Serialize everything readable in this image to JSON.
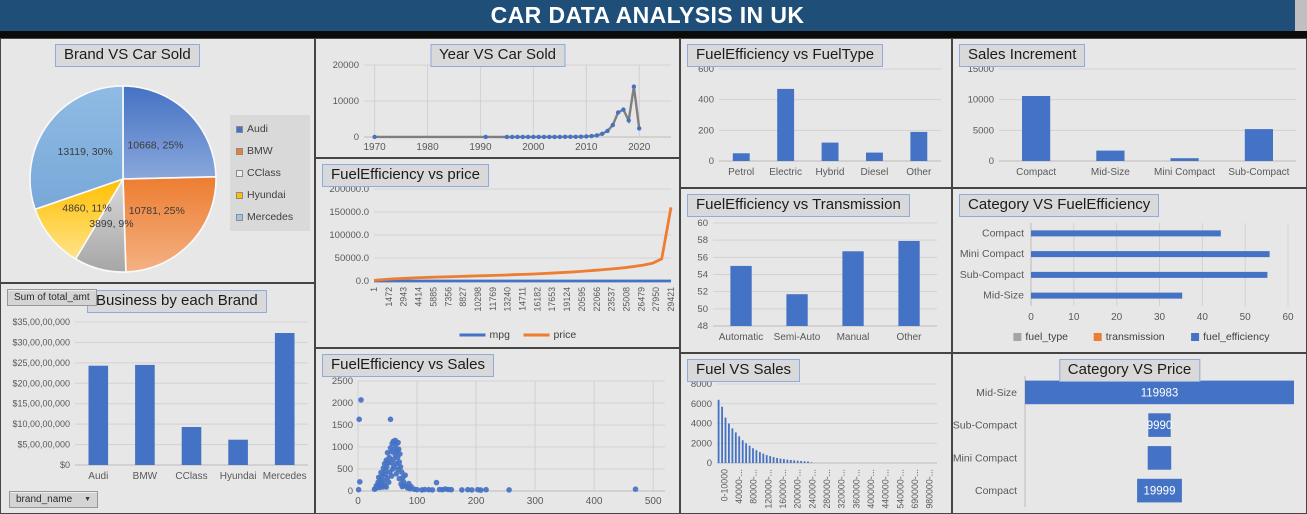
{
  "header": {
    "title": "CAR DATA ANALYSIS IN UK",
    "bg_color": "#1F4E79",
    "text_color": "#FFFFFF"
  },
  "pivot": {
    "field_button": "Sum of total_amt",
    "axis_button": "brand_name",
    "axis_arrow": "▼"
  },
  "colors": {
    "primary_bar": "#4472C4",
    "orange": "#ED7D31",
    "gray": "#A5A5A5",
    "yellow": "#FFC000",
    "light_blue": "#9DC3E6",
    "panel_bg": "#E8E7E7",
    "title_box_bg": "#D9D9D9",
    "title_box_border": "#8FAADC"
  },
  "chart_data": [
    {
      "id": "brand-pie",
      "type": "pie",
      "title": "Brand VS Car Sold",
      "categories": [
        "Audi",
        "BMW",
        "CClass",
        "Hyundai",
        "Mercedes"
      ],
      "values": [
        10668,
        10781,
        3899,
        4860,
        13119
      ],
      "labels": [
        "10668, 25%",
        "10781, 25%",
        "3899, 9%",
        "4860, 11%",
        "13119, 30%"
      ],
      "legend_colors": [
        "#4472C4",
        "#ED7D31",
        "#EDEDED",
        "#FFC000",
        "#9DC3E6"
      ],
      "slice_gradients": [
        [
          "#4472C4",
          "#8AA7DB"
        ],
        [
          "#ED7D31",
          "#F4B183"
        ],
        [
          "#D9D9D9",
          "#A6A6A6"
        ],
        [
          "#FFC000",
          "#FFE38A"
        ],
        [
          "#8FBBE4",
          "#79A8D8"
        ]
      ],
      "legend_position": "right"
    },
    {
      "id": "business-brand",
      "type": "bar",
      "title": "Business by each Brand",
      "categories": [
        "Audi",
        "BMW",
        "CClass",
        "Hyundai",
        "Mercedes"
      ],
      "values": [
        243000000,
        245000000,
        93000000,
        62000000,
        323000000
      ],
      "ylim": [
        0,
        350000000
      ],
      "ytick_labels": [
        "$0",
        "$5,00,00,000",
        "$10,00,00,000",
        "$15,00,00,000",
        "$20,00,00,000",
        "$25,00,00,000",
        "$30,00,00,000",
        "$35,00,00,000"
      ],
      "tick_fs": 9,
      "bar_frac": 0.42
    },
    {
      "id": "year-sold",
      "type": "line",
      "title": "Year VS Car Sold",
      "x": [
        1970,
        1991,
        1995,
        1996,
        1997,
        1998,
        1999,
        2000,
        2001,
        2002,
        2003,
        2004,
        2005,
        2006,
        2007,
        2008,
        2009,
        2010,
        2011,
        2012,
        2013,
        2014,
        2015,
        2016,
        2017,
        2018,
        2019,
        2020
      ],
      "y": [
        20,
        30,
        10,
        12,
        15,
        18,
        20,
        22,
        25,
        28,
        30,
        35,
        40,
        45,
        55,
        65,
        80,
        150,
        250,
        450,
        900,
        1700,
        3300,
        6800,
        7600,
        4600,
        14000,
        2400
      ],
      "xlim": [
        1968,
        2026
      ],
      "ylim": [
        0,
        20000
      ],
      "xticks": [
        1970,
        1980,
        1990,
        2000,
        2010,
        2020
      ],
      "yticks": [
        0,
        10000,
        20000
      ],
      "line_color": "#7F7F7F",
      "marker_color": "#4472C4"
    },
    {
      "id": "fe-price",
      "type": "multiline",
      "title": "FuelEfficiency vs price",
      "xtick_labels": [
        "1",
        "1472",
        "2943",
        "4414",
        "5885",
        "7356",
        "8827",
        "10298",
        "11769",
        "13240",
        "14711",
        "16182",
        "17653",
        "19124",
        "20595",
        "22066",
        "23537",
        "25008",
        "26479",
        "27950",
        "29421"
      ],
      "ylim": [
        0,
        200000
      ],
      "ytick_labels": [
        "0.0",
        "50000.0",
        "100000.0",
        "150000.0",
        "200000.0"
      ],
      "series": [
        {
          "name": "mpg",
          "color": "#4472C4",
          "values": [
            40,
            45,
            48,
            50,
            52,
            53,
            54,
            55,
            55,
            56,
            56,
            57,
            57,
            58,
            58,
            59,
            59,
            60,
            60,
            60,
            61,
            61,
            62,
            62,
            63,
            63,
            64,
            64,
            65,
            65,
            66,
            68,
            72
          ]
        },
        {
          "name": "price",
          "color": "#ED7D31",
          "values": [
            1200,
            3000,
            4500,
            5500,
            6500,
            7300,
            8000,
            8600,
            9200,
            9800,
            10400,
            11000,
            11600,
            12200,
            12900,
            13600,
            14300,
            15100,
            16000,
            17000,
            18000,
            19200,
            20500,
            22000,
            23500,
            25200,
            27000,
            29000,
            31500,
            34500,
            38500,
            48000,
            160000
          ]
        }
      ]
    },
    {
      "id": "fe-sales",
      "type": "scatter",
      "title": "FuelEfficiency vs Sales",
      "xlim": [
        0,
        520
      ],
      "ylim": [
        0,
        2500
      ],
      "xticks": [
        0,
        100,
        200,
        300,
        400,
        500
      ],
      "yticks": [
        0,
        500,
        1000,
        1500,
        2000,
        2500
      ],
      "point_color": "#4472C4",
      "points": [
        [
          5,
          2070
        ],
        [
          2,
          1630
        ],
        [
          55,
          1630
        ],
        [
          3,
          210
        ],
        [
          1,
          30
        ],
        [
          28,
          40
        ],
        [
          30,
          60
        ],
        [
          31,
          120
        ],
        [
          33,
          90
        ],
        [
          34,
          200
        ],
        [
          35,
          310
        ],
        [
          36,
          150
        ],
        [
          37,
          80
        ],
        [
          38,
          260
        ],
        [
          39,
          420
        ],
        [
          40,
          180
        ],
        [
          41,
          350
        ],
        [
          42,
          90
        ],
        [
          43,
          520
        ],
        [
          44,
          240
        ],
        [
          45,
          620
        ],
        [
          45,
          130
        ],
        [
          46,
          380
        ],
        [
          47,
          460
        ],
        [
          48,
          700
        ],
        [
          48,
          90
        ],
        [
          49,
          550
        ],
        [
          50,
          870
        ],
        [
          50,
          300
        ],
        [
          51,
          650
        ],
        [
          52,
          200
        ],
        [
          53,
          760
        ],
        [
          54,
          430
        ],
        [
          55,
          980
        ],
        [
          56,
          640
        ],
        [
          57,
          890
        ],
        [
          57,
          340
        ],
        [
          58,
          1080
        ],
        [
          59,
          500
        ],
        [
          60,
          1130
        ],
        [
          60,
          720
        ],
        [
          61,
          560
        ],
        [
          62,
          960
        ],
        [
          63,
          1150
        ],
        [
          63,
          830
        ],
        [
          64,
          1050
        ],
        [
          65,
          620
        ],
        [
          65,
          390
        ],
        [
          66,
          910
        ],
        [
          67,
          760
        ],
        [
          68,
          490
        ],
        [
          68,
          1100
        ],
        [
          69,
          950
        ],
        [
          70,
          660
        ],
        [
          70,
          280
        ],
        [
          71,
          840
        ],
        [
          72,
          550
        ],
        [
          73,
          160
        ],
        [
          74,
          430
        ],
        [
          75,
          100
        ],
        [
          76,
          310
        ],
        [
          77,
          210
        ],
        [
          78,
          120
        ],
        [
          80,
          360
        ],
        [
          82,
          110
        ],
        [
          84,
          70
        ],
        [
          86,
          170
        ],
        [
          88,
          50
        ],
        [
          90,
          100
        ],
        [
          95,
          40
        ],
        [
          100,
          30
        ],
        [
          108,
          25
        ],
        [
          113,
          35
        ],
        [
          120,
          30
        ],
        [
          126,
          25
        ],
        [
          133,
          190
        ],
        [
          138,
          35
        ],
        [
          143,
          30
        ],
        [
          148,
          45
        ],
        [
          153,
          35
        ],
        [
          158,
          30
        ],
        [
          176,
          25
        ],
        [
          186,
          30
        ],
        [
          193,
          25
        ],
        [
          203,
          30
        ],
        [
          208,
          20
        ],
        [
          217,
          30
        ],
        [
          256,
          25
        ],
        [
          470,
          40
        ]
      ]
    },
    {
      "id": "fe-fueltype",
      "type": "bar",
      "title": "FuelEfficiency vs FuelType",
      "categories": [
        "Petrol",
        "Electric",
        "Hybrid",
        "Diesel",
        "Other"
      ],
      "values": [
        50,
        470,
        120,
        55,
        190
      ],
      "ylim": [
        0,
        600
      ],
      "ytick_labels": [
        "0",
        "200",
        "400",
        "600"
      ]
    },
    {
      "id": "fe-transmission",
      "type": "bar",
      "title": "FuelEfficiency vs Transmission",
      "categories": [
        "Automatic",
        "Semi-Auto",
        "Manual",
        "Other"
      ],
      "values": [
        55.0,
        51.7,
        56.7,
        57.9
      ],
      "ylim": [
        48,
        60
      ],
      "ytick_labels": [
        "48",
        "50",
        "52",
        "54",
        "56",
        "58",
        "60"
      ]
    },
    {
      "id": "fuel-sales",
      "type": "thinbar",
      "title": "Fuel VS Sales",
      "values": [
        6400,
        5700,
        4600,
        4000,
        3500,
        3100,
        2700,
        2300,
        2000,
        1750,
        1500,
        1300,
        1100,
        950,
        800,
        700,
        600,
        520,
        450,
        390,
        340,
        300,
        260,
        230,
        200,
        175,
        150,
        60,
        40,
        30,
        20,
        15,
        10,
        8,
        6,
        5,
        4,
        3,
        3,
        2,
        2,
        2,
        1,
        1,
        1,
        1,
        0,
        0,
        0,
        0,
        0,
        0,
        0,
        0,
        0,
        0,
        0,
        0,
        0,
        0,
        0,
        0,
        0,
        0
      ],
      "xtick_labels": [
        "0-10000",
        "40000-...",
        "80000-...",
        "120000-...",
        "160000-...",
        "200000-...",
        "240000-...",
        "280000-...",
        "320000-...",
        "360000-...",
        "400000-...",
        "440000-...",
        "540000-...",
        "690000-...",
        "980000-..."
      ],
      "ylim": [
        0,
        8000
      ],
      "yticks": [
        0,
        2000,
        4000,
        6000,
        8000
      ]
    },
    {
      "id": "sales-increment",
      "type": "bar",
      "title": "Sales Increment",
      "categories": [
        "Compact",
        "Mid-Size",
        "Mini Compact",
        "Sub-Compact"
      ],
      "values": [
        10600,
        1700,
        450,
        5200
      ],
      "ylim": [
        0,
        15000
      ],
      "ytick_labels": [
        "0",
        "5000",
        "10000",
        "15000"
      ]
    },
    {
      "id": "cat-fe",
      "type": "hbar",
      "title": "Category VS FuelEfficiency",
      "categories": [
        "Compact",
        "Mini Compact",
        "Sub-Compact",
        "Mid-Size"
      ],
      "values": [
        44.3,
        55.7,
        55.2,
        35.3
      ],
      "xlim": [
        0,
        60
      ],
      "xticks": [
        0,
        10,
        20,
        30,
        40,
        50,
        60
      ],
      "legend": [
        {
          "label": "fuel_type",
          "color": "#A5A5A5"
        },
        {
          "label": "transmission",
          "color": "#ED7D31"
        },
        {
          "label": "fuel_efficiency",
          "color": "#4472C4"
        }
      ]
    },
    {
      "id": "cat-price",
      "type": "funnel",
      "title": "Category VS Price",
      "categories": [
        "Mid-Size",
        "Sub-Compact",
        "Mini Compact",
        "Compact"
      ],
      "values": [
        119983,
        9990,
        10490,
        19999
      ],
      "labels": [
        "119983",
        "9990",
        "",
        "19999"
      ],
      "bar_color": "#4472C4"
    }
  ]
}
